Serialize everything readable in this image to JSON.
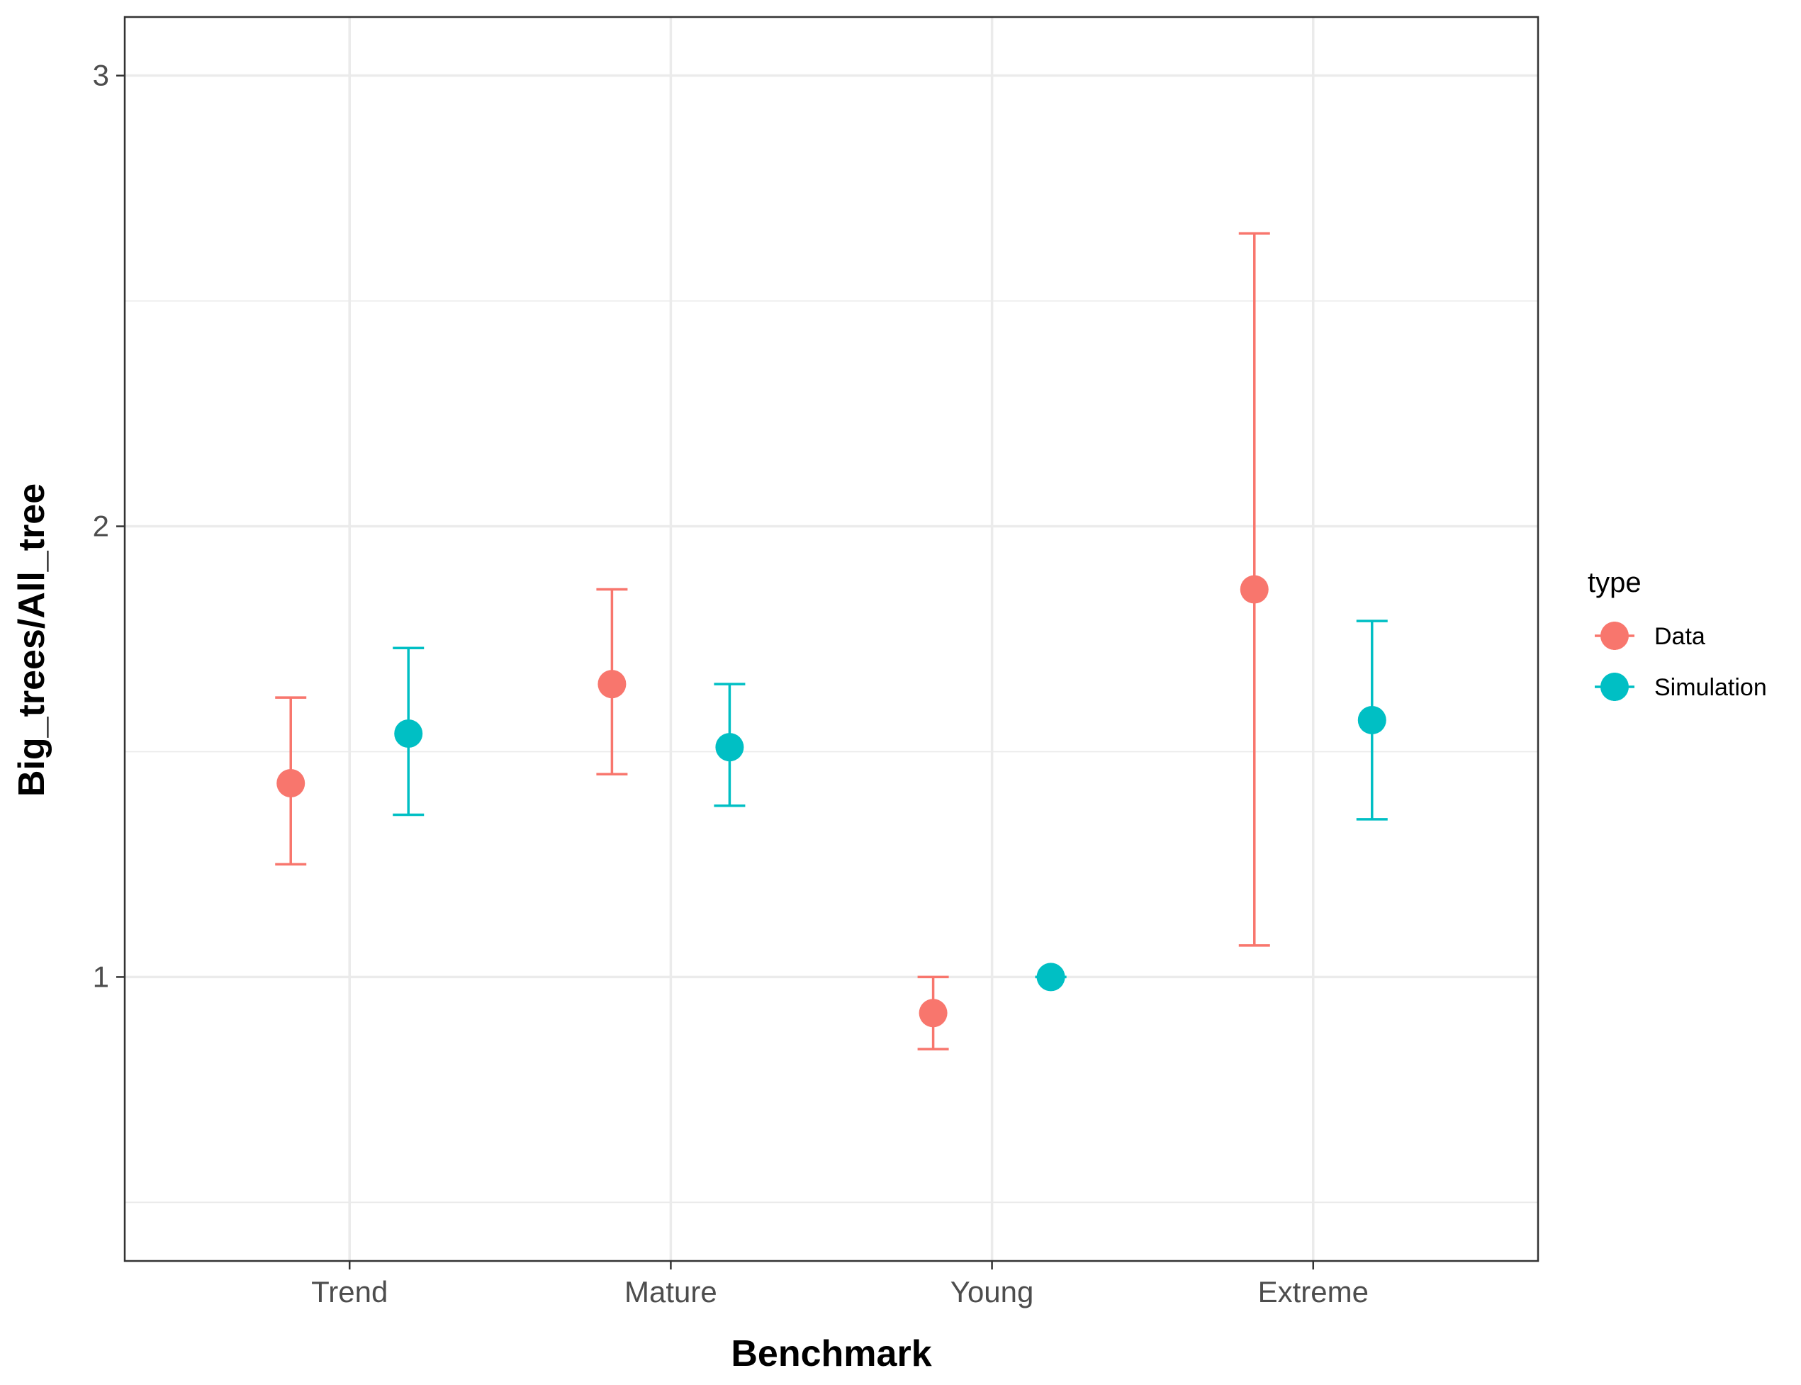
{
  "chart_data": {
    "type": "scatter",
    "xlabel": "Benchmark",
    "ylabel": "Big_trees/All_tree",
    "categories": [
      "Trend",
      "Mature",
      "Young",
      "Extreme"
    ],
    "ylim": [
      0.37,
      3.13
    ],
    "yticks": [
      1,
      2,
      3
    ],
    "y_minor_ticks": [
      0.5,
      1.5,
      2.5
    ],
    "grid": true,
    "legend": {
      "title": "type",
      "placement": "right",
      "entries": [
        "Data",
        "Simulation"
      ]
    },
    "colors": {
      "Data": "#F8766D",
      "Simulation": "#00BFC4"
    },
    "series": [
      {
        "name": "Data",
        "values": [
          1.43,
          1.65,
          0.92,
          1.86
        ],
        "lower": [
          1.25,
          1.45,
          0.84,
          1.07
        ],
        "upper": [
          1.62,
          1.86,
          1.0,
          2.65
        ]
      },
      {
        "name": "Simulation",
        "values": [
          1.54,
          1.51,
          1.0,
          1.57
        ],
        "lower": [
          1.36,
          1.38,
          1.0,
          1.35
        ],
        "upper": [
          1.73,
          1.65,
          1.0,
          1.79
        ]
      }
    ]
  }
}
